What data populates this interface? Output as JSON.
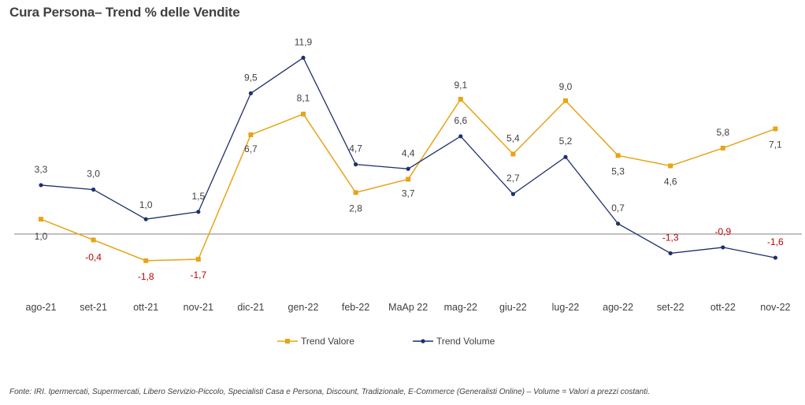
{
  "title": "Cura Persona– Trend % delle Vendite",
  "footnote": "Fonte: IRI. Ipermercati, Supermercati, Libero Servizio-Piccolo,  Specialisti Casa e Persona, Discount, Tradizionale, E-Commerce (Generalisti Online) –  Volume =  Valori a prezzi costanti.",
  "colors": {
    "valore": "#E8A317",
    "volume": "#1F2F6E",
    "negative_label": "#C00000",
    "label": "#404040",
    "axis": "#808080"
  },
  "chart_data": {
    "type": "line",
    "title": "Cura Persona– Trend % delle Vendite",
    "categories": [
      "ago-21",
      "set-21",
      "ott-21",
      "nov-21",
      "dic-21",
      "gen-22",
      "feb-22",
      "MaAp 22",
      "mag-22",
      "giu-22",
      "lug-22",
      "ago-22",
      "set-22",
      "ott-22",
      "nov-22"
    ],
    "series": [
      {
        "name": "Trend Valore",
        "values": [
          1.0,
          -0.4,
          -1.8,
          -1.7,
          6.7,
          8.1,
          2.8,
          3.7,
          9.1,
          5.4,
          9.0,
          5.3,
          4.6,
          5.8,
          7.1
        ],
        "labels": [
          "1,0",
          "-0,4",
          "-1,8",
          "-1,7",
          "6,7",
          "8,1",
          "2,8",
          "3,7",
          "9,1",
          "5,4",
          "9,0",
          "5,3",
          "4,6",
          "5,8",
          "7,1"
        ],
        "marker": "square"
      },
      {
        "name": "Trend Volume",
        "values": [
          3.3,
          3.0,
          1.0,
          1.5,
          9.5,
          11.9,
          4.7,
          4.4,
          6.6,
          2.7,
          5.2,
          0.7,
          -1.3,
          -0.9,
          -1.6
        ],
        "labels": [
          "3,3",
          "3,0",
          "1,0",
          "1,5",
          "9,5",
          "11,9",
          "4,7",
          "4,4",
          "6,6",
          "2,7",
          "5,2",
          "0,7",
          "-1,3",
          "-0,9",
          "-1,6"
        ],
        "marker": "circle"
      }
    ],
    "ylim": [
      -3,
      13
    ],
    "grid": false,
    "legend": "bottom"
  }
}
